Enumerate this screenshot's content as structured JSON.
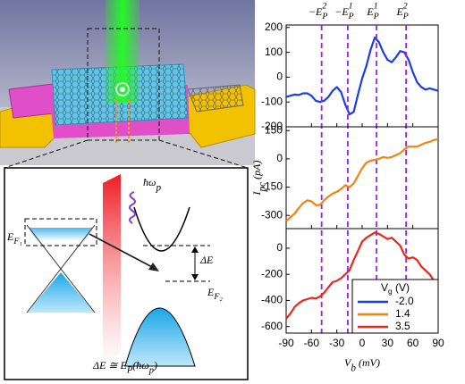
{
  "illustration": {
    "photon": [
      {
        "text": "ħω"
      },
      {
        "text": "p",
        "sub": true
      }
    ],
    "fermi_left": [
      {
        "text": "E"
      },
      {
        "text": "F₁",
        "sub": true
      }
    ],
    "gap": [
      {
        "text": "ΔE"
      }
    ],
    "fermi_right": [
      {
        "text": "E"
      },
      {
        "text": "F₂",
        "sub": true
      }
    ],
    "formula": [
      {
        "text": "ΔE ≅ E"
      },
      {
        "text": "P",
        "sub": true
      },
      {
        "text": "(ħω"
      },
      {
        "text": "p",
        "sub": true
      },
      {
        "text": ")"
      }
    ]
  },
  "chart_data": [
    {
      "type": "line",
      "x": [
        -90,
        -85,
        -80,
        -75,
        -70,
        -65,
        -60,
        -55,
        -50,
        -45,
        -40,
        -35,
        -30,
        -25,
        -20,
        -15,
        -10,
        -5,
        0,
        5,
        10,
        15,
        20,
        25,
        30,
        35,
        40,
        45,
        50,
        55,
        60,
        65,
        70,
        75,
        80,
        85,
        90
      ],
      "xlim": [
        -90,
        90
      ],
      "ylim": [
        -200,
        210
      ],
      "yticks": [
        -200,
        -100,
        0,
        100,
        200
      ],
      "series": [
        {
          "name": "-2.0",
          "color": "#1a3ee6",
          "values": [
            -80,
            -75,
            -70,
            -72,
            -65,
            -65,
            -75,
            -95,
            -100,
            -95,
            -80,
            -55,
            -40,
            -60,
            -110,
            -150,
            -140,
            -70,
            -5,
            45,
            110,
            160,
            140,
            100,
            70,
            60,
            80,
            105,
            100,
            70,
            20,
            -20,
            -40,
            -50,
            -45,
            -50,
            -55
          ]
        }
      ],
      "annotations": [
        {
          "x": -48,
          "label": [
            {
              "text": "−E"
            },
            {
              "text": "P",
              "sub": true
            },
            {
              "text": "2",
              "sup": true
            }
          ]
        },
        {
          "x": -17,
          "label": [
            {
              "text": "−E"
            },
            {
              "text": "P",
              "sub": true
            },
            {
              "text": "1",
              "sup": true
            }
          ]
        },
        {
          "x": 17,
          "label": [
            {
              "text": "E"
            },
            {
              "text": "P",
              "sub": true
            },
            {
              "text": "1",
              "sup": true
            }
          ]
        },
        {
          "x": 52,
          "label": [
            {
              "text": "E"
            },
            {
              "text": "P",
              "sub": true
            },
            {
              "text": "2",
              "sup": true
            }
          ]
        }
      ],
      "annotation_color": "#a020f0"
    },
    {
      "type": "line",
      "x": [
        -90,
        -85,
        -80,
        -75,
        -70,
        -65,
        -60,
        -55,
        -50,
        -45,
        -40,
        -35,
        -30,
        -25,
        -20,
        -15,
        -10,
        -5,
        0,
        5,
        10,
        15,
        20,
        25,
        30,
        35,
        40,
        45,
        50,
        55,
        60,
        65,
        70,
        75,
        80,
        85,
        90
      ],
      "xlim": [
        -90,
        90
      ],
      "ylim": [
        -370,
        170
      ],
      "yticks": [
        -300,
        -150,
        0,
        150
      ],
      "ylabel": [
        {
          "text": "I"
        },
        {
          "text": "pc",
          "sub": true
        },
        {
          "text": " (pA)"
        }
      ],
      "series": [
        {
          "name": "1.4",
          "color": "#f5820f",
          "values": [
            -330,
            -310,
            -290,
            -260,
            -235,
            -220,
            -225,
            -245,
            -245,
            -220,
            -200,
            -185,
            -175,
            -160,
            -140,
            -150,
            -130,
            -90,
            -50,
            -20,
            -10,
            -5,
            0,
            10,
            5,
            10,
            20,
            30,
            50,
            65,
            65,
            65,
            75,
            85,
            90,
            100,
            105
          ]
        }
      ]
    },
    {
      "type": "line",
      "x": [
        -90,
        -85,
        -80,
        -75,
        -70,
        -65,
        -60,
        -55,
        -50,
        -45,
        -40,
        -35,
        -30,
        -25,
        -20,
        -15,
        -10,
        -5,
        0,
        5,
        10,
        15,
        20,
        25,
        30,
        35,
        40,
        45,
        50,
        55,
        60,
        65,
        70,
        75,
        80,
        85,
        90
      ],
      "xlim": [
        -90,
        90
      ],
      "ylim": [
        -650,
        150
      ],
      "yticks": [
        -600,
        -400,
        -200,
        0
      ],
      "xticks": [
        -90,
        -60,
        -30,
        0,
        30,
        60,
        90
      ],
      "xlabel": [
        {
          "text": "V"
        },
        {
          "text": "b",
          "sub": true
        },
        {
          "text": " (mV)"
        }
      ],
      "legend": {
        "title": [
          {
            "text": "V"
          },
          {
            "text": "g",
            "sub": true
          },
          {
            "text": " (V)"
          }
        ],
        "corner": "lower right"
      },
      "series": [
        {
          "name": "3.5",
          "color": "#e8281e",
          "values": [
            -540,
            -500,
            -450,
            -420,
            -400,
            -390,
            -380,
            -385,
            -370,
            -340,
            -300,
            -260,
            -250,
            -230,
            -200,
            -170,
            -90,
            -20,
            50,
            80,
            100,
            120,
            110,
            90,
            70,
            80,
            50,
            20,
            -50,
            -80,
            -70,
            -90,
            -140,
            -170,
            -200,
            -250,
            -280
          ]
        }
      ]
    }
  ]
}
